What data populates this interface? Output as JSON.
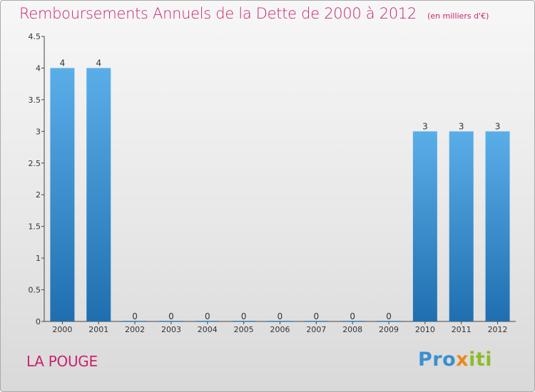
{
  "title": "Remboursements Annuels de la Dette de 2000 à 2012",
  "unit": "(en milliers d'€)",
  "commune": "LA POUGE",
  "logo": {
    "part1": "Pro",
    "part2": "x",
    "part3": "iti"
  },
  "colors": {
    "title": "#c8246e",
    "bar_top": "#5aaee8",
    "bar_bottom": "#1f6fb0",
    "axis": "#444444"
  },
  "chart_data": {
    "type": "bar",
    "categories": [
      "2000",
      "2001",
      "2002",
      "2003",
      "2004",
      "2005",
      "2006",
      "2007",
      "2008",
      "2009",
      "2010",
      "2011",
      "2012"
    ],
    "values": [
      4,
      4,
      0,
      0,
      0,
      0,
      0,
      0,
      0,
      0,
      3,
      3,
      3
    ],
    "value_labels": [
      "4",
      "4",
      "0",
      "0",
      "0",
      "0",
      "0",
      "0",
      "0",
      "0",
      "3",
      "3",
      "3"
    ],
    "ylim": [
      0,
      4.5
    ],
    "yticks": [
      0,
      0.5,
      1,
      1.5,
      2,
      2.5,
      3,
      3.5,
      4,
      4.5
    ],
    "ytick_labels": [
      "0",
      "0.5",
      "1",
      "1.5",
      "2",
      "2.5",
      "3",
      "3.5",
      "4",
      "4.5"
    ],
    "grid": false,
    "legend": "none"
  }
}
